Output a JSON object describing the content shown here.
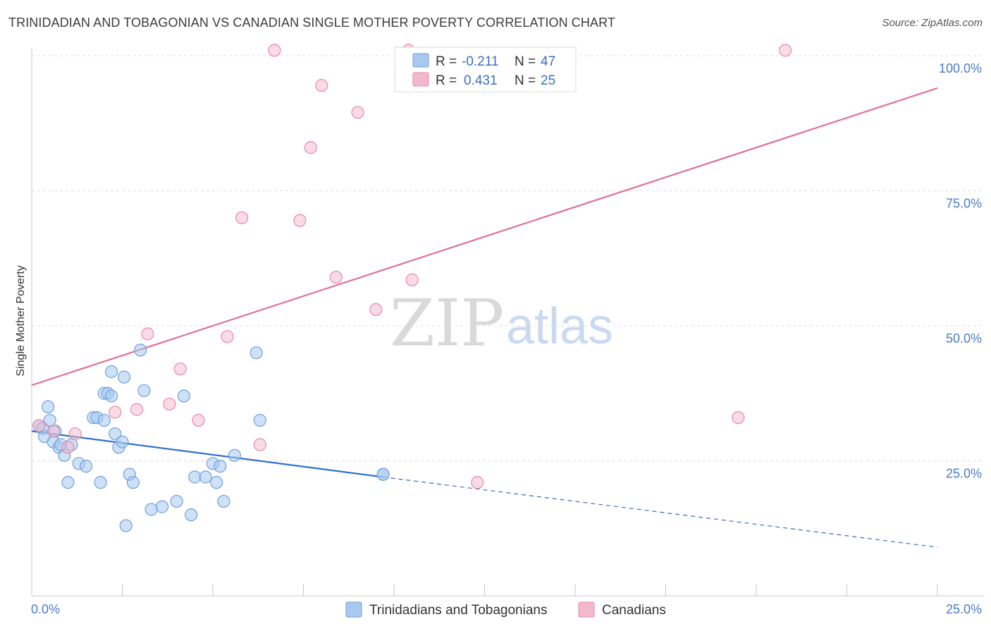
{
  "header": {
    "title": "TRINIDADIAN AND TOBAGONIAN VS CANADIAN SINGLE MOTHER POVERTY CORRELATION CHART",
    "source": "Source: ZipAtlas.com"
  },
  "watermark": {
    "zip": "ZIP",
    "atlas": "atlas"
  },
  "legend": {
    "rows": [
      {
        "r_label": "R =",
        "r_value": "-0.211",
        "n_label": "N =",
        "n_value": "47",
        "color": "#a8c8f0"
      },
      {
        "r_label": "R =",
        "r_value": "0.431",
        "n_label": "N =",
        "n_value": "25",
        "color": "#f4b8cb"
      }
    ]
  },
  "bottom_legend": {
    "items": [
      {
        "label": "Trinidadians and Tobagonians",
        "color": "#a8c8f0"
      },
      {
        "label": "Canadians",
        "color": "#f4b8cb"
      }
    ]
  },
  "chart_data": {
    "type": "scatter",
    "title": "TRINIDADIAN AND TOBAGONIAN VS CANADIAN SINGLE MOTHER POVERTY CORRELATION CHART",
    "xlabel": "",
    "ylabel": "Single Mother Poverty",
    "xlim": [
      0,
      25
    ],
    "ylim": [
      0,
      105
    ],
    "x_tick_labels": [
      "0.0%",
      "25.0%"
    ],
    "y_ticks": [
      25,
      50,
      75,
      100
    ],
    "y_tick_labels": [
      "25.0%",
      "50.0%",
      "75.0%",
      "100.0%"
    ],
    "grid": true,
    "series": [
      {
        "name": "Trinidadians and Tobagonians",
        "color": "#a8c8f0",
        "edge": "#6fa0dc",
        "points": [
          [
            0.2,
            31.5
          ],
          [
            0.3,
            31.0
          ],
          [
            0.35,
            29.5
          ],
          [
            0.45,
            35.0
          ],
          [
            0.5,
            32.5
          ],
          [
            0.6,
            28.5
          ],
          [
            0.65,
            30.5
          ],
          [
            0.75,
            27.5
          ],
          [
            0.8,
            28.0
          ],
          [
            0.9,
            26.0
          ],
          [
            1.0,
            21.0
          ],
          [
            1.1,
            28.0
          ],
          [
            1.3,
            24.5
          ],
          [
            1.5,
            24.0
          ],
          [
            1.7,
            33.0
          ],
          [
            1.8,
            33.0
          ],
          [
            1.9,
            21.0
          ],
          [
            2.0,
            32.5
          ],
          [
            2.0,
            37.5
          ],
          [
            2.1,
            37.5
          ],
          [
            2.2,
            37.0
          ],
          [
            2.2,
            41.5
          ],
          [
            2.3,
            30.0
          ],
          [
            2.4,
            27.5
          ],
          [
            2.5,
            28.5
          ],
          [
            2.55,
            40.5
          ],
          [
            2.6,
            13.0
          ],
          [
            2.7,
            22.5
          ],
          [
            2.8,
            21.0
          ],
          [
            3.0,
            45.5
          ],
          [
            3.1,
            38.0
          ],
          [
            3.3,
            16.0
          ],
          [
            3.6,
            16.5
          ],
          [
            4.0,
            17.5
          ],
          [
            4.2,
            37.0
          ],
          [
            4.4,
            15.0
          ],
          [
            4.5,
            22.0
          ],
          [
            4.8,
            22.0
          ],
          [
            5.0,
            24.5
          ],
          [
            5.1,
            21.0
          ],
          [
            5.2,
            24.0
          ],
          [
            5.3,
            17.5
          ],
          [
            5.6,
            26.0
          ],
          [
            6.2,
            45.0
          ],
          [
            6.3,
            32.5
          ],
          [
            9.7,
            22.5
          ],
          [
            9.7,
            22.5
          ]
        ]
      },
      {
        "name": "Canadians",
        "color": "#f4b8cb",
        "edge": "#e58aa8",
        "points": [
          [
            0.2,
            31.5
          ],
          [
            0.6,
            30.5
          ],
          [
            1.0,
            27.5
          ],
          [
            1.2,
            30.0
          ],
          [
            2.3,
            34.0
          ],
          [
            2.9,
            34.5
          ],
          [
            3.2,
            48.5
          ],
          [
            3.8,
            35.5
          ],
          [
            4.1,
            42.0
          ],
          [
            4.6,
            32.5
          ],
          [
            5.4,
            48.0
          ],
          [
            5.8,
            70.0
          ],
          [
            6.3,
            28.0
          ],
          [
            6.7,
            101.0
          ],
          [
            7.4,
            69.5
          ],
          [
            7.7,
            83.0
          ],
          [
            8.0,
            94.5
          ],
          [
            8.4,
            59.0
          ],
          [
            9.0,
            89.5
          ],
          [
            9.5,
            53.0
          ],
          [
            10.4,
            101.0
          ],
          [
            10.5,
            58.5
          ],
          [
            12.3,
            21.0
          ],
          [
            19.5,
            33.0
          ],
          [
            20.8,
            101.0
          ]
        ]
      }
    ],
    "trend_lines": [
      {
        "series": "Trinidadians and Tobagonians",
        "color": "#2f6fcf",
        "solid": [
          [
            0,
            30.5
          ],
          [
            9.7,
            22.0
          ]
        ],
        "dashed": [
          [
            9.7,
            22.0
          ],
          [
            25.0,
            9.0
          ]
        ]
      },
      {
        "series": "Canadians",
        "color": "#e07098",
        "solid": [
          [
            0,
            39.0
          ],
          [
            25.0,
            94.0
          ]
        ]
      }
    ]
  }
}
